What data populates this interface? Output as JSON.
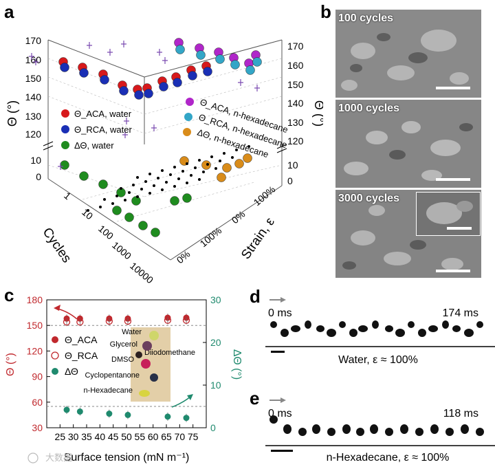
{
  "panels": {
    "a": "a",
    "b": "b",
    "c": "c",
    "d": "d",
    "e": "e"
  },
  "panel_a": {
    "axis_theta": "Θ (°)",
    "axis_cycles": "Cycles",
    "axis_strain": "Strain, ε",
    "left_ticks": [
      "170",
      "160",
      "150",
      "140",
      "130",
      "120",
      "10",
      "0"
    ],
    "right_ticks": [
      "170",
      "160",
      "150",
      "140",
      "130",
      "120",
      "10",
      "0"
    ],
    "cycle_ticks": [
      "1",
      "10",
      "100",
      "1000",
      "10000"
    ],
    "strain_ticks": [
      "0%",
      "100%",
      "0%",
      "100%"
    ],
    "legend_water": [
      "Θ_ACA, water",
      "Θ_RCA, water",
      "ΔΘ, water"
    ],
    "legend_hex": [
      "Θ_ACA, n-hexadecane",
      "Θ_RCA, n-hexadecane",
      "ΔΘ, n-hexadecane"
    ],
    "colors": {
      "aca_water": "#d7191c",
      "rca_water": "#1a2fb5",
      "d_water": "#1f8c1f",
      "aca_hex": "#b026c9",
      "rca_hex": "#33a6c7",
      "d_hex": "#d98c1a"
    }
  },
  "panel_b": {
    "labels": [
      "100 cycles",
      "1000 cycles",
      "3000 cycles"
    ]
  },
  "chart_data": [
    {
      "type": "scatter",
      "title": "",
      "xlabel": "Surface tension (mN m⁻¹)",
      "ylabel": "Θ (°)",
      "y2label": "ΔΘ (°)",
      "xlim": [
        20,
        80
      ],
      "ylim": [
        30,
        180
      ],
      "y2lim": [
        0,
        30
      ],
      "xticks": [
        "25",
        "30",
        "35",
        "40",
        "45",
        "50",
        "55",
        "60",
        "65",
        "70",
        "75"
      ],
      "yticks": [
        "30",
        "60",
        "90",
        "120",
        "150",
        "180"
      ],
      "y2ticks": [
        "0",
        "10",
        "20",
        "30"
      ],
      "reference_lines": {
        "theta": 150,
        "delta": 5
      },
      "series": [
        {
          "name": "Θ_ACA",
          "axis": "left",
          "x": [
            27.5,
            32.5,
            43.5,
            50.5,
            65.5,
            72.5
          ],
          "y": [
            158,
            158,
            158,
            158,
            159,
            159
          ]
        },
        {
          "name": "Θ_RCA",
          "axis": "left",
          "x": [
            27.5,
            32.5,
            43.5,
            50.5,
            65.5,
            72.5
          ],
          "y": [
            154,
            154,
            155,
            155,
            156,
            156
          ]
        },
        {
          "name": "ΔΘ",
          "axis": "right",
          "x": [
            27.5,
            32.5,
            43.5,
            50.5,
            65.5,
            72.5
          ],
          "y": [
            4.2,
            3.8,
            3.3,
            3.0,
            2.6,
            2.3
          ]
        }
      ],
      "legend": [
        "Θ_ACA",
        "Θ_RCA",
        "ΔΘ"
      ],
      "inset_labels": [
        "Water",
        "Glycerol",
        "Diiodomethane",
        "DMSO",
        "Cyclopentanone",
        "n-Hexadecane"
      ]
    }
  ],
  "panel_d": {
    "t0": "0 ms",
    "t1": "174 ms",
    "caption": "Water, ε ≈ 100%"
  },
  "panel_e": {
    "t0": "0 ms",
    "t1": "118 ms",
    "caption": "n-Hexadecane, ε ≈ 100%"
  },
  "watermark": "大数据"
}
